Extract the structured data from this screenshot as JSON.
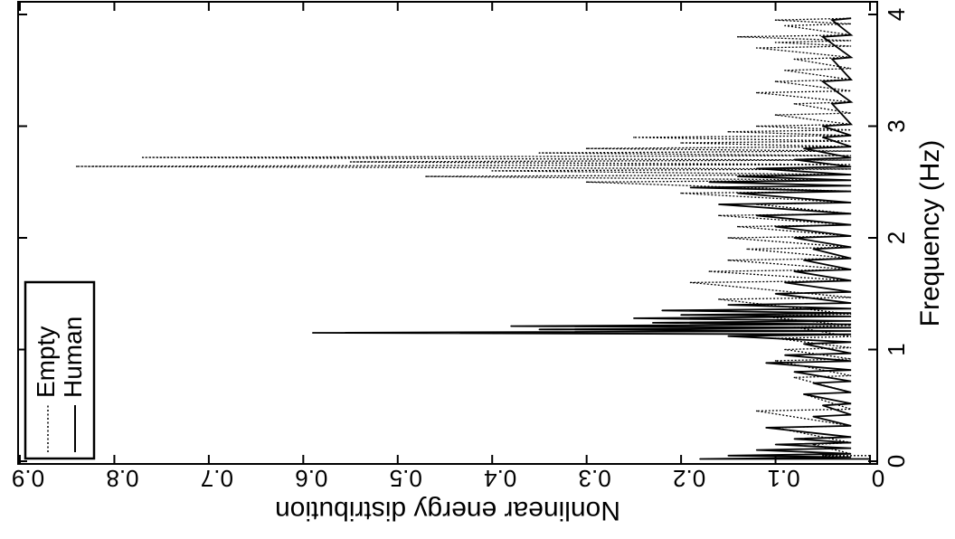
{
  "chart_data": {
    "type": "line",
    "orientation": "rotated-90-clockwise",
    "xlabel": "Frequency (Hz)",
    "ylabel": "Nonlinear energy distribution",
    "xlim": [
      0,
      4
    ],
    "ylim": [
      0,
      0.9
    ],
    "x_ticks": [
      "0",
      "1",
      "2",
      "3",
      "4"
    ],
    "y_ticks": [
      "0",
      "0.1",
      "0.2",
      "0.3",
      "0.4",
      "0.5",
      "0.6",
      "0.7",
      "0.8",
      "0.9"
    ],
    "legend": {
      "placement": "top-left",
      "entries": [
        "Empty",
        "Human"
      ]
    },
    "series": [
      {
        "name": "Empty",
        "style": "dotted",
        "x": [
          0.05,
          0.15,
          0.3,
          0.45,
          0.6,
          0.75,
          0.9,
          1.0,
          1.1,
          1.2,
          1.3,
          1.45,
          1.6,
          1.7,
          1.8,
          1.9,
          2.0,
          2.1,
          2.2,
          2.3,
          2.4,
          2.5,
          2.55,
          2.6,
          2.64,
          2.68,
          2.72,
          2.76,
          2.8,
          2.85,
          2.9,
          2.95,
          3.0,
          3.1,
          3.2,
          3.3,
          3.4,
          3.5,
          3.6,
          3.7,
          3.75,
          3.8,
          3.9,
          3.95
        ],
        "y": [
          0.05,
          0.06,
          0.1,
          0.12,
          0.07,
          0.08,
          0.1,
          0.09,
          0.1,
          0.08,
          0.12,
          0.16,
          0.19,
          0.17,
          0.15,
          0.13,
          0.15,
          0.14,
          0.16,
          0.12,
          0.2,
          0.3,
          0.47,
          0.4,
          0.84,
          0.55,
          0.77,
          0.35,
          0.3,
          0.2,
          0.25,
          0.15,
          0.12,
          0.1,
          0.08,
          0.12,
          0.1,
          0.09,
          0.08,
          0.12,
          0.1,
          0.14,
          0.09,
          0.1
        ]
      },
      {
        "name": "Human",
        "style": "solid",
        "x": [
          0.02,
          0.05,
          0.1,
          0.15,
          0.2,
          0.3,
          0.4,
          0.5,
          0.6,
          0.7,
          0.8,
          0.88,
          0.95,
          1.05,
          1.12,
          1.15,
          1.18,
          1.21,
          1.24,
          1.28,
          1.31,
          1.35,
          1.4,
          1.5,
          1.6,
          1.7,
          1.8,
          1.9,
          2.0,
          2.1,
          2.2,
          2.3,
          2.4,
          2.45,
          2.5,
          2.55,
          2.62,
          2.7,
          2.8,
          2.9,
          3.0,
          3.2,
          3.4,
          3.6,
          3.8,
          3.95
        ],
        "y": [
          0.18,
          0.15,
          0.12,
          0.1,
          0.08,
          0.11,
          0.06,
          0.05,
          0.07,
          0.06,
          0.08,
          0.11,
          0.09,
          0.07,
          0.15,
          0.59,
          0.35,
          0.38,
          0.23,
          0.25,
          0.2,
          0.22,
          0.15,
          0.1,
          0.09,
          0.08,
          0.07,
          0.06,
          0.08,
          0.1,
          0.12,
          0.16,
          0.14,
          0.19,
          0.17,
          0.14,
          0.12,
          0.08,
          0.07,
          0.05,
          0.05,
          0.04,
          0.05,
          0.04,
          0.05,
          0.04
        ]
      }
    ]
  }
}
